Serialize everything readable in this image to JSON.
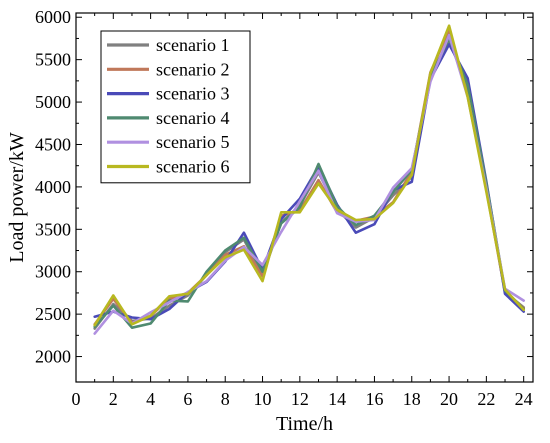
{
  "chart_data": {
    "type": "line",
    "xlabel": "Time/h",
    "ylabel": "Load power/kW",
    "xlim": [
      0,
      24.5
    ],
    "ylim": [
      1700,
      6050
    ],
    "x_ticks": [
      "0",
      "2",
      "4",
      "6",
      "8",
      "10",
      "12",
      "14",
      "16",
      "18",
      "20",
      "22",
      "24"
    ],
    "y_ticks": [
      "2000",
      "2500",
      "3000",
      "3500",
      "4000",
      "4500",
      "5000",
      "5500",
      "6000"
    ],
    "x": [
      1,
      2,
      3,
      4,
      5,
      6,
      7,
      8,
      9,
      10,
      11,
      12,
      13,
      14,
      15,
      16,
      17,
      18,
      19,
      20,
      21,
      22,
      23,
      24
    ],
    "legend_position": "top-left",
    "grid": false,
    "series": [
      {
        "name": "scenario 1",
        "color": "#808080",
        "values": [
          2330,
          2620,
          2420,
          2450,
          2600,
          2720,
          2960,
          3230,
          3380,
          2960,
          3580,
          3780,
          4170,
          3730,
          3520,
          3640,
          3900,
          4120,
          5320,
          5720,
          5180,
          4020,
          2760,
          2580
        ]
      },
      {
        "name": "scenario 2",
        "color": "#c0785a",
        "values": [
          2380,
          2680,
          2400,
          2480,
          2680,
          2750,
          2960,
          3200,
          3300,
          2950,
          3660,
          3720,
          4080,
          3700,
          3600,
          3650,
          3820,
          4180,
          5350,
          5850,
          5080,
          3960,
          2760,
          2570
        ]
      },
      {
        "name": "scenario 3",
        "color": "#4a4ab8",
        "values": [
          2470,
          2530,
          2460,
          2440,
          2560,
          2760,
          2880,
          3120,
          3460,
          3020,
          3620,
          3860,
          4240,
          3790,
          3460,
          3560,
          3960,
          4060,
          5270,
          5680,
          5280,
          4060,
          2740,
          2530
        ]
      },
      {
        "name": "scenario 4",
        "color": "#4f8a70",
        "values": [
          2350,
          2600,
          2340,
          2390,
          2660,
          2650,
          3000,
          3250,
          3400,
          3000,
          3570,
          3760,
          4270,
          3770,
          3550,
          3660,
          3940,
          4200,
          5290,
          5750,
          5200,
          4040,
          2780,
          2560
        ]
      },
      {
        "name": "scenario 5",
        "color": "#b090e0",
        "values": [
          2270,
          2540,
          2390,
          2520,
          2640,
          2760,
          2890,
          3130,
          3290,
          3080,
          3470,
          3830,
          4190,
          3690,
          3590,
          3610,
          3990,
          4220,
          5240,
          5790,
          5060,
          3980,
          2800,
          2660
        ]
      },
      {
        "name": "scenario 6",
        "color": "#b8b820",
        "values": [
          2370,
          2720,
          2380,
          2480,
          2710,
          2740,
          2960,
          3170,
          3260,
          2890,
          3700,
          3700,
          4040,
          3730,
          3610,
          3620,
          3810,
          4140,
          5340,
          5900,
          5060,
          3940,
          2790,
          2550
        ]
      }
    ]
  }
}
